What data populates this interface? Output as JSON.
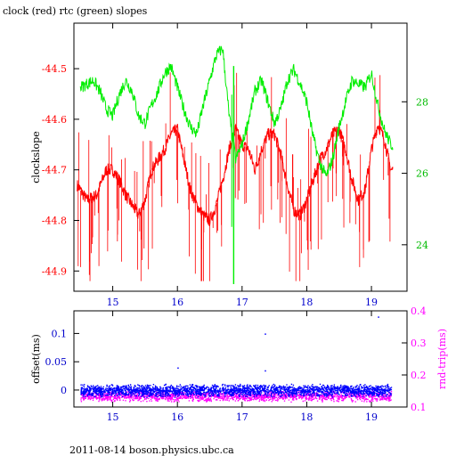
{
  "title": "clock (red) rtc (green) slopes",
  "footer": "2011-08-14  boson.physics.ubc.ca",
  "colors": {
    "clock": "#ff0000",
    "rtc": "#00ee00",
    "offset": "#0000ff",
    "roundtrip": "#ff00ff",
    "axis": "#000000"
  },
  "chart_data": [
    {
      "type": "line",
      "title": "clock (red) rtc (green) slopes",
      "xlabel": "",
      "ylabel": "clockslope",
      "xlim": [
        14.4,
        19.55
      ],
      "x_ticks": [
        15,
        16,
        17,
        18,
        19
      ],
      "ylim": [
        -44.94,
        -44.41
      ],
      "y_ticks": [
        -44.5,
        -44.6,
        -44.7,
        -44.8,
        -44.9
      ],
      "y2lim": [
        22.7,
        30.2
      ],
      "y2_ticks": [
        24,
        26,
        28
      ],
      "grid": false,
      "series": [
        {
          "axis": "left",
          "color": "red",
          "x": [
            14.45,
            14.6,
            14.75,
            14.9,
            15.0,
            15.1,
            15.2,
            15.3,
            15.4,
            15.5,
            15.6,
            15.7,
            15.8,
            15.9,
            16.0,
            16.1,
            16.2,
            16.3,
            16.4,
            16.5,
            16.6,
            16.7,
            16.8,
            16.9,
            17.0,
            17.1,
            17.2,
            17.3,
            17.4,
            17.5,
            17.6,
            17.7,
            17.8,
            17.9,
            18.0,
            18.1,
            18.2,
            18.3,
            18.4,
            18.5,
            18.6,
            18.7,
            18.8,
            18.9,
            19.0,
            19.1,
            19.2,
            19.3
          ],
          "y": [
            -44.73,
            -44.76,
            -44.75,
            -44.7,
            -44.7,
            -44.72,
            -44.75,
            -44.77,
            -44.79,
            -44.76,
            -44.7,
            -44.68,
            -44.66,
            -44.63,
            -44.62,
            -44.68,
            -44.74,
            -44.77,
            -44.79,
            -44.8,
            -44.77,
            -44.72,
            -44.66,
            -44.62,
            -44.65,
            -44.66,
            -44.7,
            -44.66,
            -44.63,
            -44.63,
            -44.67,
            -44.73,
            -44.78,
            -44.79,
            -44.76,
            -44.72,
            -44.68,
            -44.66,
            -44.63,
            -44.62,
            -44.66,
            -44.72,
            -44.76,
            -44.74,
            -44.66,
            -44.61,
            -44.64,
            -44.7
          ]
        },
        {
          "axis": "right",
          "color": "green",
          "x": [
            14.5,
            14.6,
            14.7,
            14.8,
            14.9,
            15.0,
            15.1,
            15.2,
            15.3,
            15.4,
            15.5,
            15.6,
            15.7,
            15.8,
            15.9,
            16.0,
            16.1,
            16.2,
            16.3,
            16.4,
            16.5,
            16.6,
            16.7,
            16.8,
            16.9,
            17.0,
            17.1,
            17.2,
            17.3,
            17.4,
            17.5,
            17.6,
            17.7,
            17.8,
            17.9,
            18.0,
            18.1,
            18.2,
            18.3,
            18.4,
            18.5,
            18.6,
            18.7,
            18.8,
            18.9,
            19.0,
            19.1,
            19.2,
            19.3
          ],
          "y": [
            28.4,
            28.5,
            28.6,
            28.3,
            27.8,
            27.6,
            28.2,
            28.6,
            28.3,
            27.6,
            27.4,
            27.9,
            28.3,
            28.8,
            29.0,
            28.4,
            27.8,
            27.3,
            27.1,
            27.9,
            28.6,
            29.3,
            29.5,
            27.6,
            26.4,
            26.8,
            27.5,
            28.3,
            28.6,
            28.0,
            27.4,
            27.8,
            28.6,
            28.9,
            28.5,
            28.0,
            27.0,
            26.3,
            25.9,
            26.4,
            27.3,
            28.0,
            28.6,
            28.5,
            28.4,
            28.8,
            27.9,
            27.2,
            26.8
          ]
        }
      ]
    },
    {
      "type": "scatter",
      "xlabel": "",
      "ylabel": "offset(ms)",
      "y2label": "rnd-trip(ms)",
      "xlim": [
        14.4,
        19.55
      ],
      "x_ticks": [
        15,
        16,
        17,
        18,
        19
      ],
      "ylim": [
        -0.03,
        0.14
      ],
      "y_ticks": [
        0,
        0.05,
        0.1
      ],
      "y2lim": [
        0.1,
        0.4
      ],
      "y2_ticks": [
        0.1,
        0.2,
        0.3,
        0.4
      ],
      "grid": false,
      "series": [
        {
          "axis": "left",
          "color": "blue",
          "band_center": 0.0,
          "band_halfwidth": 0.012,
          "outliers_x": [
            16.0,
            17.35,
            17.35,
            19.1
          ],
          "outliers_y": [
            0.04,
            0.1,
            0.035,
            0.13
          ]
        },
        {
          "axis": "right",
          "color": "magenta",
          "band_center": 0.135,
          "band_halfwidth": 0.018
        }
      ]
    }
  ]
}
